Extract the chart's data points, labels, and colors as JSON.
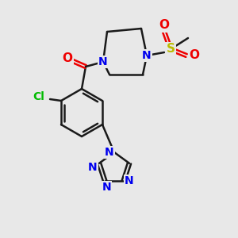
{
  "bg_color": "#e8e8e8",
  "bond_color": "#1a1a1a",
  "bond_width": 1.8,
  "atom_colors": {
    "N": "#0000ee",
    "O": "#ee0000",
    "Cl": "#00bb00",
    "S": "#bbbb00",
    "C": "#1a1a1a"
  },
  "font_size_atom": 11,
  "font_size_small": 9,
  "scale": 1.0
}
